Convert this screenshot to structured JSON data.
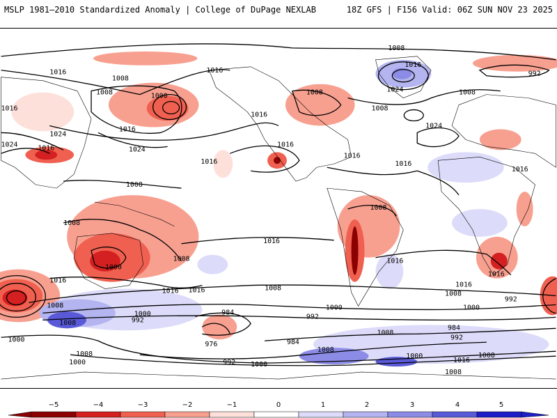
{
  "header": {
    "title_left": "MSLP 1981–2010 Standardized Anomaly | College of DuPage NEXLAB",
    "title_right": "18Z GFS | F156 Valid: 06Z SUN NOV 23 2025"
  },
  "colors": {
    "neg5": "#8b0000",
    "neg4": "#d42020",
    "neg3": "#f06050",
    "neg2": "#f8a090",
    "neg1": "#fde0da",
    "zero": "#ffffff",
    "pos1": "#dcdcfa",
    "pos2": "#b4b4f0",
    "pos3": "#8c8ce6",
    "pos4": "#5a5ad8",
    "pos5": "#1e1ec8",
    "contour": "#000000",
    "coast": "#000000"
  },
  "isobar_labels": [
    "1008",
    "1016",
    "1008",
    "1008",
    "1000",
    "1016",
    "1016",
    "1016",
    "1008",
    "1016",
    "1024",
    "1008",
    "1016",
    "1024",
    "992",
    "1008",
    "1024",
    "1016",
    "1016",
    "1024",
    "1016",
    "1008",
    "1016",
    "1016",
    "1008",
    "1016",
    "1024",
    "1008",
    "1008",
    "1016",
    "1016",
    "1016",
    "1008",
    "1000",
    "1016",
    "1016",
    "1016",
    "1008",
    "1008",
    "1016",
    "1000",
    "992",
    "1008",
    "1000",
    "992",
    "984",
    "1000",
    "1000",
    "992",
    "1008",
    "1000",
    "984",
    "984",
    "976",
    "992",
    "1000",
    "1008",
    "1008",
    "1008",
    "1016",
    "1008",
    "992",
    "1000"
  ],
  "colorbar": {
    "ticks": [
      "−5",
      "−4",
      "−3",
      "−2",
      "−1",
      "0",
      "1",
      "2",
      "3",
      "4",
      "5"
    ]
  }
}
